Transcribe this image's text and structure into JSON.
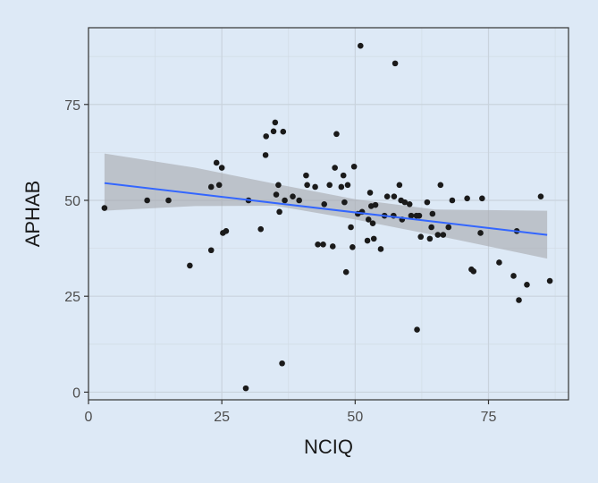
{
  "chart_data": {
    "type": "scatter",
    "title": "",
    "xlabel": "NCIQ",
    "ylabel": "APHAB",
    "xlim": [
      0,
      90
    ],
    "ylim": [
      -2,
      95
    ],
    "xticks": [
      0,
      25,
      50,
      75
    ],
    "yticks": [
      0,
      25,
      50,
      75
    ],
    "grid": true,
    "colors": {
      "background": "#dde9f6",
      "points": "#1a1a1a",
      "trend_line": "#3366ff",
      "confidence_band": "#a6a9ad",
      "grid_major": "#c9d3dd"
    },
    "trend_line": {
      "method": "linear",
      "start": {
        "x": 3,
        "y": 54.5
      },
      "end": {
        "x": 86,
        "y": 41
      },
      "confidence_band": [
        {
          "x": 3,
          "lower": 47.3,
          "upper": 62.2
        },
        {
          "x": 20,
          "lower": 48.5,
          "upper": 58.5
        },
        {
          "x": 35,
          "lower": 48.6,
          "upper": 54.3
        },
        {
          "x": 50,
          "lower": 45.0,
          "upper": 50.3
        },
        {
          "x": 65,
          "lower": 40.9,
          "upper": 47.6
        },
        {
          "x": 86,
          "lower": 34.8,
          "upper": 47.3
        }
      ]
    },
    "points": [
      {
        "x": 3,
        "y": 48
      },
      {
        "x": 11,
        "y": 50
      },
      {
        "x": 15,
        "y": 50
      },
      {
        "x": 19,
        "y": 33
      },
      {
        "x": 23,
        "y": 37
      },
      {
        "x": 23,
        "y": 53.5
      },
      {
        "x": 24,
        "y": 59.8
      },
      {
        "x": 24.5,
        "y": 54
      },
      {
        "x": 25,
        "y": 58.5
      },
      {
        "x": 25.2,
        "y": 41.5
      },
      {
        "x": 25.8,
        "y": 42
      },
      {
        "x": 29.5,
        "y": 1
      },
      {
        "x": 30,
        "y": 50
      },
      {
        "x": 32.3,
        "y": 42.5
      },
      {
        "x": 33.2,
        "y": 61.8
      },
      {
        "x": 33.3,
        "y": 66.7
      },
      {
        "x": 34.7,
        "y": 68
      },
      {
        "x": 35,
        "y": 70.3
      },
      {
        "x": 35.2,
        "y": 51.5
      },
      {
        "x": 35.6,
        "y": 54
      },
      {
        "x": 35.8,
        "y": 47
      },
      {
        "x": 36.3,
        "y": 7.5
      },
      {
        "x": 36.5,
        "y": 67.9
      },
      {
        "x": 36.8,
        "y": 50
      },
      {
        "x": 38.3,
        "y": 51
      },
      {
        "x": 39.5,
        "y": 50
      },
      {
        "x": 40.8,
        "y": 56.5
      },
      {
        "x": 41,
        "y": 54
      },
      {
        "x": 42.5,
        "y": 53.5
      },
      {
        "x": 43,
        "y": 38.5
      },
      {
        "x": 44,
        "y": 38.5
      },
      {
        "x": 44.2,
        "y": 49
      },
      {
        "x": 45.2,
        "y": 54
      },
      {
        "x": 45.8,
        "y": 38
      },
      {
        "x": 46.2,
        "y": 58.5
      },
      {
        "x": 46.5,
        "y": 67.3
      },
      {
        "x": 47.4,
        "y": 53.5
      },
      {
        "x": 47.8,
        "y": 56.5
      },
      {
        "x": 48,
        "y": 49.5
      },
      {
        "x": 48.3,
        "y": 31.3
      },
      {
        "x": 48.6,
        "y": 54
      },
      {
        "x": 49.2,
        "y": 43
      },
      {
        "x": 49.5,
        "y": 37.8
      },
      {
        "x": 49.8,
        "y": 58.8
      },
      {
        "x": 50.5,
        "y": 46.5
      },
      {
        "x": 51,
        "y": 90.3
      },
      {
        "x": 51.3,
        "y": 47
      },
      {
        "x": 52.3,
        "y": 39.5
      },
      {
        "x": 52.5,
        "y": 45
      },
      {
        "x": 52.8,
        "y": 52
      },
      {
        "x": 53,
        "y": 48.5
      },
      {
        "x": 53.3,
        "y": 44
      },
      {
        "x": 53.5,
        "y": 40
      },
      {
        "x": 53.8,
        "y": 48.8
      },
      {
        "x": 54.8,
        "y": 37.3
      },
      {
        "x": 55.5,
        "y": 46
      },
      {
        "x": 56,
        "y": 51
      },
      {
        "x": 57.2,
        "y": 46
      },
      {
        "x": 57.3,
        "y": 51
      },
      {
        "x": 57.5,
        "y": 85.7
      },
      {
        "x": 58.3,
        "y": 54
      },
      {
        "x": 58.6,
        "y": 50
      },
      {
        "x": 58.8,
        "y": 45
      },
      {
        "x": 59.3,
        "y": 49.5
      },
      {
        "x": 60.2,
        "y": 49
      },
      {
        "x": 60.5,
        "y": 46
      },
      {
        "x": 61.5,
        "y": 46
      },
      {
        "x": 61.6,
        "y": 16.3
      },
      {
        "x": 62,
        "y": 46
      },
      {
        "x": 62.3,
        "y": 40.5
      },
      {
        "x": 63.5,
        "y": 49.5
      },
      {
        "x": 64,
        "y": 40
      },
      {
        "x": 64.3,
        "y": 43
      },
      {
        "x": 64.5,
        "y": 46.5
      },
      {
        "x": 65.5,
        "y": 41
      },
      {
        "x": 66,
        "y": 54
      },
      {
        "x": 66.5,
        "y": 41
      },
      {
        "x": 67.5,
        "y": 43
      },
      {
        "x": 68.2,
        "y": 50
      },
      {
        "x": 71,
        "y": 50.5
      },
      {
        "x": 71.8,
        "y": 32
      },
      {
        "x": 72.2,
        "y": 31.5
      },
      {
        "x": 73.5,
        "y": 41.5
      },
      {
        "x": 73.8,
        "y": 50.5
      },
      {
        "x": 77,
        "y": 33.8
      },
      {
        "x": 79.7,
        "y": 30.3
      },
      {
        "x": 80.3,
        "y": 42
      },
      {
        "x": 80.7,
        "y": 24
      },
      {
        "x": 82.2,
        "y": 28
      },
      {
        "x": 84.8,
        "y": 51
      },
      {
        "x": 86.5,
        "y": 29
      }
    ]
  }
}
